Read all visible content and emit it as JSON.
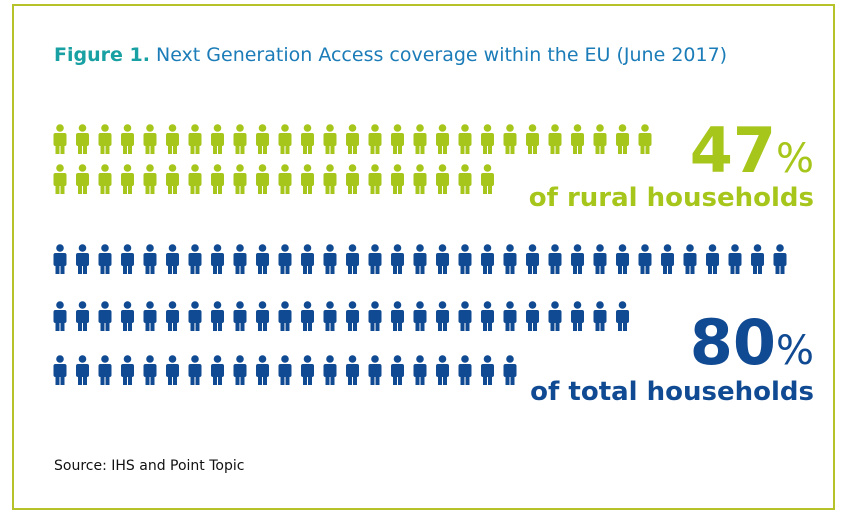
{
  "figure": {
    "label": "Figure 1.",
    "title": "Next Generation Access coverage within the EU (June 2017)"
  },
  "chart_data": {
    "type": "pictograph",
    "title": "Figure 1. Next Generation Access coverage within the EU (June 2017)",
    "series": [
      {
        "name": "of rural households",
        "value": 47,
        "unit": "%",
        "color": "#a7c61b",
        "rows": [
          27,
          20
        ]
      },
      {
        "name": "of total households",
        "value": 80,
        "unit": "%",
        "color": "#104a92",
        "rows": [
          33,
          26,
          21
        ]
      }
    ]
  },
  "rural": {
    "value": "47",
    "sign": "%",
    "label": "of rural households"
  },
  "total": {
    "value": "80",
    "sign": "%",
    "label": "of total households"
  },
  "source": "Source: IHS and Point Topic",
  "colors": {
    "border": "#b5c229",
    "rural": "#a7c61b",
    "total": "#104a92",
    "caption": "#1b7cb8",
    "figure_label": "#18a0a3"
  }
}
